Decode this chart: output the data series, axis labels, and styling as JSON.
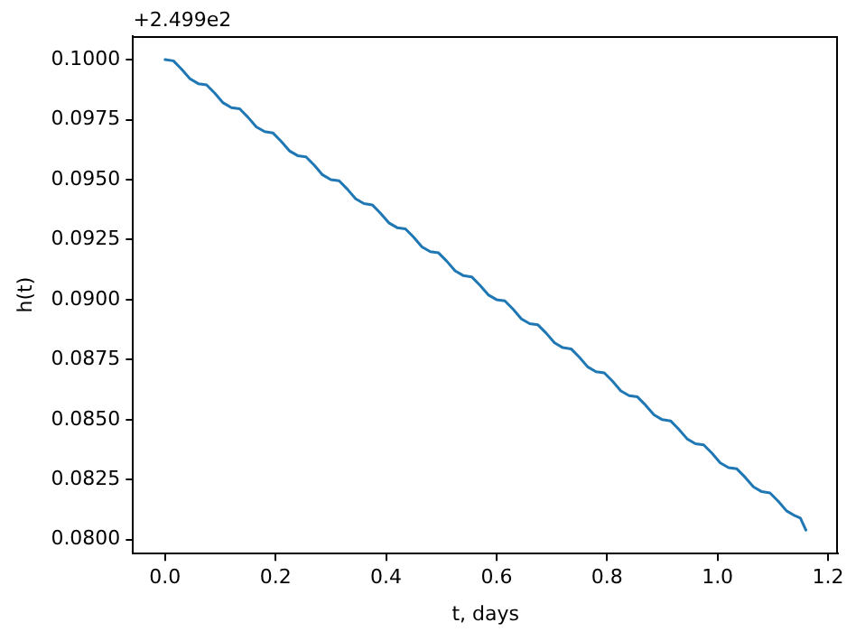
{
  "chart_data": {
    "type": "line",
    "xlabel": "t, days",
    "ylabel": "h(t)",
    "annotations": [
      "+2.499e2"
    ],
    "xlim": [
      -0.058,
      1.218
    ],
    "ylim": [
      0.07942,
      0.10098
    ],
    "xticks": [
      {
        "value": 0,
        "label": "0.0"
      },
      {
        "value": 0.2,
        "label": "0.2"
      },
      {
        "value": 0.4,
        "label": "0.4"
      },
      {
        "value": 0.6,
        "label": "0.6"
      },
      {
        "value": 0.8,
        "label": "0.8"
      },
      {
        "value": 1,
        "label": "1.0"
      },
      {
        "value": 1.2,
        "label": "1.2"
      }
    ],
    "yticks": [
      {
        "value": 0.08,
        "label": "0.0800"
      },
      {
        "value": 0.0825,
        "label": "0.0825"
      },
      {
        "value": 0.085,
        "label": "0.0850"
      },
      {
        "value": 0.0875,
        "label": "0.0875"
      },
      {
        "value": 0.09,
        "label": "0.0900"
      },
      {
        "value": 0.0925,
        "label": "0.0925"
      },
      {
        "value": 0.095,
        "label": "0.0950"
      },
      {
        "value": 0.0975,
        "label": "0.0975"
      },
      {
        "value": 0.1,
        "label": "0.1000"
      }
    ],
    "grid": false,
    "series": [
      {
        "color": "#1f77b4",
        "x": [
          0,
          0.015,
          0.03,
          0.045,
          0.06,
          0.075,
          0.09,
          0.105,
          0.12,
          0.135,
          0.15,
          0.165,
          0.18,
          0.195,
          0.21,
          0.225,
          0.24,
          0.255,
          0.27,
          0.285,
          0.3,
          0.315,
          0.33,
          0.345,
          0.36,
          0.375,
          0.39,
          0.405,
          0.42,
          0.435,
          0.45,
          0.465,
          0.48,
          0.495,
          0.51,
          0.525,
          0.54,
          0.555,
          0.57,
          0.585,
          0.6,
          0.615,
          0.63,
          0.645,
          0.66,
          0.675,
          0.69,
          0.705,
          0.72,
          0.735,
          0.75,
          0.765,
          0.78,
          0.795,
          0.81,
          0.825,
          0.84,
          0.855,
          0.87,
          0.885,
          0.9,
          0.915,
          0.93,
          0.945,
          0.96,
          0.975,
          0.99,
          1.005,
          1.02,
          1.035,
          1.05,
          1.065,
          1.08,
          1.095,
          1.11,
          1.125,
          1.14,
          1.15,
          1.16
        ],
        "values": [
          0.1,
          0.09995,
          0.0996,
          0.0992,
          0.099,
          0.09895,
          0.0986,
          0.0982,
          0.098,
          0.09795,
          0.0976,
          0.0972,
          0.097,
          0.09695,
          0.0966,
          0.0962,
          0.096,
          0.09595,
          0.0956,
          0.0952,
          0.095,
          0.09495,
          0.0946,
          0.0942,
          0.094,
          0.09395,
          0.0936,
          0.0932,
          0.093,
          0.09295,
          0.0926,
          0.0922,
          0.092,
          0.09195,
          0.0916,
          0.0912,
          0.091,
          0.09095,
          0.0906,
          0.0902,
          0.09,
          0.08995,
          0.0896,
          0.0892,
          0.089,
          0.08895,
          0.0886,
          0.0882,
          0.088,
          0.08795,
          0.0876,
          0.0872,
          0.087,
          0.08695,
          0.0866,
          0.0862,
          0.086,
          0.08595,
          0.0856,
          0.0852,
          0.085,
          0.08495,
          0.0846,
          0.0842,
          0.084,
          0.08395,
          0.0836,
          0.0832,
          0.083,
          0.08295,
          0.0826,
          0.0822,
          0.082,
          0.08195,
          0.0816,
          0.0812,
          0.081,
          0.0809,
          0.0804
        ]
      }
    ]
  }
}
